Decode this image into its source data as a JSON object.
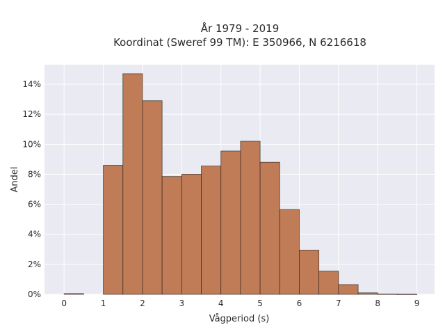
{
  "chart_data": {
    "type": "bar",
    "title": "År 1979 - 2019",
    "subtitle": "Koordinat (Sweref 99 TM): E 350966, N 6216618",
    "xlabel": "Vågperiod (s)",
    "ylabel": "Andel",
    "xlim": [
      -0.5,
      9.45
    ],
    "ylim": [
      0,
      15.3
    ],
    "x_ticks": [
      0,
      1,
      2,
      3,
      4,
      5,
      6,
      7,
      8,
      9
    ],
    "y_ticks": [
      0,
      2,
      4,
      6,
      8,
      10,
      12,
      14
    ],
    "y_tick_labels": [
      "0%",
      "2%",
      "4%",
      "6%",
      "8%",
      "10%",
      "12%",
      "14%"
    ],
    "grid": true,
    "bin_width": 0.5,
    "bins": [
      {
        "x0": 0.0,
        "x1": 0.5,
        "value": 0.05
      },
      {
        "x0": 0.5,
        "x1": 1.0,
        "value": 0.0
      },
      {
        "x0": 1.0,
        "x1": 1.5,
        "value": 8.6
      },
      {
        "x0": 1.5,
        "x1": 2.0,
        "value": 14.7
      },
      {
        "x0": 2.0,
        "x1": 2.5,
        "value": 12.9
      },
      {
        "x0": 2.5,
        "x1": 3.0,
        "value": 7.85
      },
      {
        "x0": 3.0,
        "x1": 3.5,
        "value": 8.0
      },
      {
        "x0": 3.5,
        "x1": 4.0,
        "value": 8.55
      },
      {
        "x0": 4.0,
        "x1": 4.5,
        "value": 9.55
      },
      {
        "x0": 4.5,
        "x1": 5.0,
        "value": 10.2
      },
      {
        "x0": 5.0,
        "x1": 5.5,
        "value": 8.8
      },
      {
        "x0": 5.5,
        "x1": 6.0,
        "value": 5.65
      },
      {
        "x0": 6.0,
        "x1": 6.5,
        "value": 2.95
      },
      {
        "x0": 6.5,
        "x1": 7.0,
        "value": 1.55
      },
      {
        "x0": 7.0,
        "x1": 7.5,
        "value": 0.65
      },
      {
        "x0": 7.5,
        "x1": 8.0,
        "value": 0.1
      },
      {
        "x0": 8.0,
        "x1": 8.5,
        "value": 0.02
      },
      {
        "x0": 8.5,
        "x1": 9.0,
        "value": 0.01
      }
    ],
    "colors": {
      "bar_fill": "#c07b57",
      "bar_edge": "#3a2a20",
      "plot_background": "#eaeaf2",
      "grid": "#ffffff"
    }
  }
}
